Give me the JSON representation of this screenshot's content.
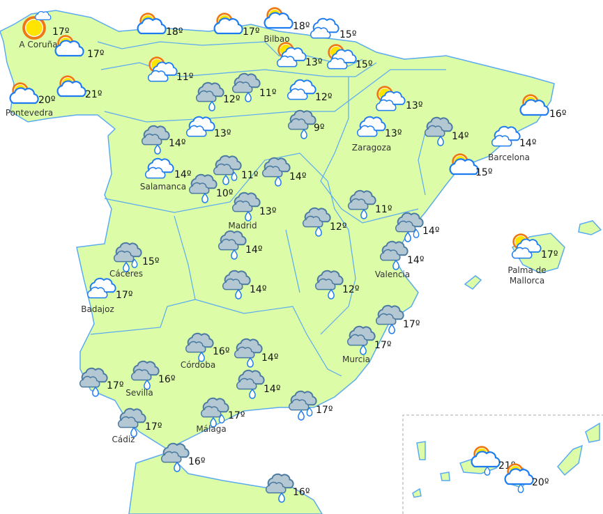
{
  "map": {
    "colors": {
      "land": "#dcfca8",
      "border": "#5aaaf0",
      "cloud_outline": "#1e7cf0",
      "rain_cloud": "#b4c8d4",
      "rain_outline": "#4a7aa0",
      "sun": "#ffe400",
      "sun_rays": "#f07814"
    },
    "stations": [
      {
        "name": "A Coruña",
        "temp": "17º",
        "icon": "sun-small-cloud"
      },
      {
        "name": "",
        "temp": "17º",
        "icon": "sun-cloud"
      },
      {
        "name": "Pontevedra",
        "temp": "20º",
        "icon": "sun-cloud"
      },
      {
        "name": "",
        "temp": "21º",
        "icon": "sun-cloud"
      },
      {
        "name": "",
        "temp": "18º",
        "icon": "sun-cloud"
      },
      {
        "name": "",
        "temp": "17º",
        "icon": "sun-cloud"
      },
      {
        "name": "Bilbao",
        "temp": "18º",
        "icon": "sun-cloud"
      },
      {
        "name": "",
        "temp": "15º",
        "icon": "clouds"
      },
      {
        "name": "",
        "temp": "13º",
        "icon": "sun-clouds"
      },
      {
        "name": "",
        "temp": "15º",
        "icon": "sun-clouds"
      },
      {
        "name": "",
        "temp": "11º",
        "icon": "sun-clouds"
      },
      {
        "name": "",
        "temp": "12º",
        "icon": "rain"
      },
      {
        "name": "",
        "temp": "11º",
        "icon": "rain"
      },
      {
        "name": "",
        "temp": "12º",
        "icon": "clouds"
      },
      {
        "name": "",
        "temp": "9º",
        "icon": "rain"
      },
      {
        "name": "",
        "temp": "14º",
        "icon": "rain"
      },
      {
        "name": "",
        "temp": "13º",
        "icon": "clouds"
      },
      {
        "name": "",
        "temp": "13º",
        "icon": "sun-clouds"
      },
      {
        "name": "Zaragoza",
        "temp": "13º",
        "icon": "clouds"
      },
      {
        "name": "",
        "temp": "14º",
        "icon": "rain"
      },
      {
        "name": "",
        "temp": "16º",
        "icon": "sun-cloud"
      },
      {
        "name": "Barcelona",
        "temp": "14º",
        "icon": "clouds"
      },
      {
        "name": "",
        "temp": "15º",
        "icon": "sun-cloud"
      },
      {
        "name": "Salamanca",
        "temp": "14º",
        "icon": "clouds"
      },
      {
        "name": "",
        "temp": "11º",
        "icon": "showers"
      },
      {
        "name": "",
        "temp": "14º",
        "icon": "rain"
      },
      {
        "name": "",
        "temp": "10º",
        "icon": "rain"
      },
      {
        "name": "Madrid",
        "temp": "13º",
        "icon": "rain"
      },
      {
        "name": "",
        "temp": "12º",
        "icon": "rain"
      },
      {
        "name": "",
        "temp": "11º",
        "icon": "rain"
      },
      {
        "name": "",
        "temp": "14º",
        "icon": "showers"
      },
      {
        "name": "Valencia",
        "temp": "14º",
        "icon": "rain"
      },
      {
        "name": "Palma de Mallorca",
        "temp": "17º",
        "icon": "sun-clouds"
      },
      {
        "name": "Cáceres",
        "temp": "15º",
        "icon": "showers"
      },
      {
        "name": "Badajoz",
        "temp": "17º",
        "icon": "clouds"
      },
      {
        "name": "",
        "temp": "14º",
        "icon": "rain"
      },
      {
        "name": "",
        "temp": "14º",
        "icon": "rain"
      },
      {
        "name": "",
        "temp": "12º",
        "icon": "rain"
      },
      {
        "name": "",
        "temp": "17º",
        "icon": "rain"
      },
      {
        "name": "Murcia",
        "temp": "17º",
        "icon": "rain"
      },
      {
        "name": "Córdoba",
        "temp": "16º",
        "icon": "rain"
      },
      {
        "name": "",
        "temp": "14º",
        "icon": "rain"
      },
      {
        "name": "",
        "temp": "17º",
        "icon": "rain"
      },
      {
        "name": "Sevilla",
        "temp": "16º",
        "icon": "rain"
      },
      {
        "name": "",
        "temp": "14º",
        "icon": "rain"
      },
      {
        "name": "",
        "temp": "17º",
        "icon": "showers"
      },
      {
        "name": "Málaga",
        "temp": "17º",
        "icon": "showers"
      },
      {
        "name": "Cádiz",
        "temp": "17º",
        "icon": "rain"
      },
      {
        "name": "",
        "temp": "16º",
        "icon": "rain"
      },
      {
        "name": "",
        "temp": "16º",
        "icon": "rain"
      },
      {
        "name": "",
        "temp": "21º",
        "icon": "sun-rain"
      },
      {
        "name": "",
        "temp": "20º",
        "icon": "sun-rain"
      }
    ]
  }
}
